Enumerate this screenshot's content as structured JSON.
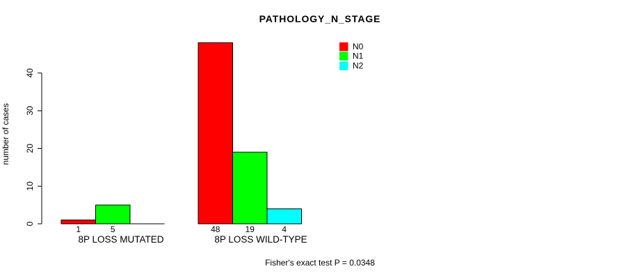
{
  "figure": {
    "background": "#ffffff",
    "axis_color": "#000000",
    "text_color": "#000000"
  },
  "chart_data": {
    "type": "bar",
    "title": "PATHOLOGY_N_STAGE",
    "xlabel": "",
    "ylabel": "number of cases",
    "categories": [
      "8P LOSS MUTATED",
      "8P LOSS WILD-TYPE"
    ],
    "series": [
      {
        "name": "N0",
        "color": "#ff0000",
        "values": [
          1,
          48
        ]
      },
      {
        "name": "N1",
        "color": "#00ff00",
        "values": [
          5,
          19
        ]
      },
      {
        "name": "N2",
        "color": "#00ffff",
        "values": [
          0,
          4
        ]
      }
    ],
    "bar_value_labels": [
      [
        "1",
        "5",
        ""
      ],
      [
        "48",
        "19",
        "4"
      ]
    ],
    "yticks": [
      0,
      10,
      20,
      30,
      40
    ],
    "ylim": [
      0,
      48
    ],
    "grid": false,
    "legend_position": "top-right",
    "legend_entries": [
      "N0",
      "N1",
      "N2"
    ],
    "annotation": "Fisher's exact test P = 0.0348"
  }
}
